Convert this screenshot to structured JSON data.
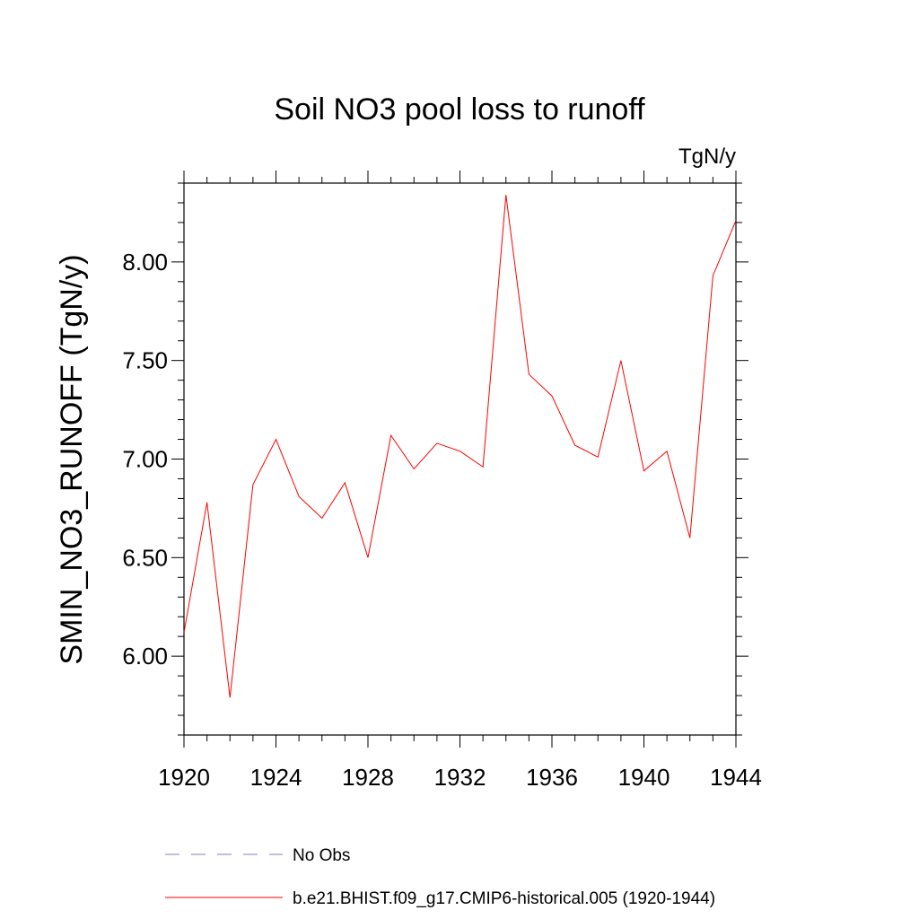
{
  "chart_data": {
    "type": "line",
    "title": "Soil NO3 pool loss to runoff",
    "units_label": "TgN/y",
    "ylabel": "SMIN_NO3_RUNOFF  (TgN/y)",
    "xlabel": "",
    "xlim": [
      1920,
      1944
    ],
    "ylim": [
      5.6,
      8.4
    ],
    "x_ticks": [
      1920,
      1924,
      1928,
      1932,
      1936,
      1940,
      1944
    ],
    "y_ticks": [
      6.0,
      6.5,
      7.0,
      7.5,
      8.0
    ],
    "y_tick_labels": [
      "6.00",
      "6.50",
      "7.00",
      "7.50",
      "8.00"
    ],
    "grid": false,
    "legend_position": "bottom",
    "series": [
      {
        "name": "b.e21.BHIST.f09_g17.CMIP6-historical.005 (1920-1944)",
        "color": "#ff0000",
        "style": "solid",
        "x": [
          1920,
          1921,
          1922,
          1923,
          1924,
          1925,
          1926,
          1927,
          1928,
          1929,
          1930,
          1931,
          1932,
          1933,
          1934,
          1935,
          1936,
          1937,
          1938,
          1939,
          1940,
          1941,
          1942,
          1943,
          1944
        ],
        "y": [
          6.12,
          6.78,
          5.79,
          6.87,
          7.1,
          6.81,
          6.7,
          6.88,
          6.5,
          7.12,
          6.95,
          7.08,
          7.04,
          6.96,
          8.34,
          7.43,
          7.32,
          7.07,
          7.01,
          7.5,
          6.94,
          7.04,
          6.6,
          7.93,
          8.21
        ]
      }
    ],
    "legend": [
      {
        "label": "No Obs",
        "color": "#8080c0",
        "style": "dashed"
      },
      {
        "label": "b.e21.BHIST.f09_g17.CMIP6-historical.005 (1920-1944)",
        "color": "#ff0000",
        "style": "solid"
      }
    ]
  }
}
